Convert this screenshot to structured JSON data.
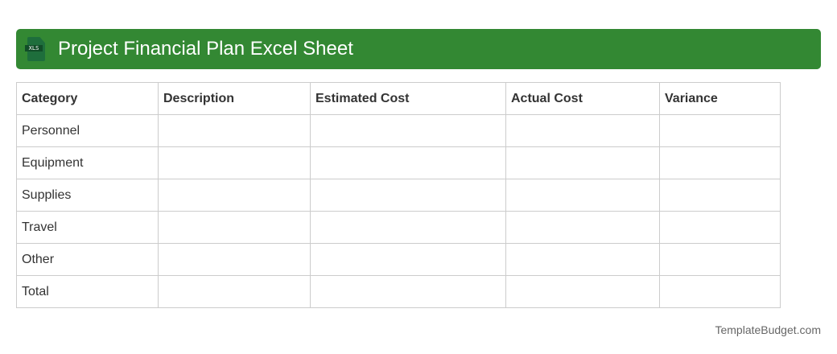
{
  "header": {
    "title": "Project Financial Plan Excel Sheet",
    "icon_label": "XLS",
    "color": "#338833"
  },
  "table": {
    "columns": [
      "Category",
      "Description",
      "Estimated Cost",
      "Actual Cost",
      "Variance"
    ],
    "rows": [
      [
        "Personnel",
        "",
        "",
        "",
        ""
      ],
      [
        "Equipment",
        "",
        "",
        "",
        ""
      ],
      [
        "Supplies",
        "",
        "",
        "",
        ""
      ],
      [
        "Travel",
        "",
        "",
        "",
        ""
      ],
      [
        "Other",
        "",
        "",
        "",
        ""
      ],
      [
        "Total",
        "",
        "",
        "",
        ""
      ]
    ]
  },
  "footer": {
    "text": "TemplateBudget.com"
  }
}
